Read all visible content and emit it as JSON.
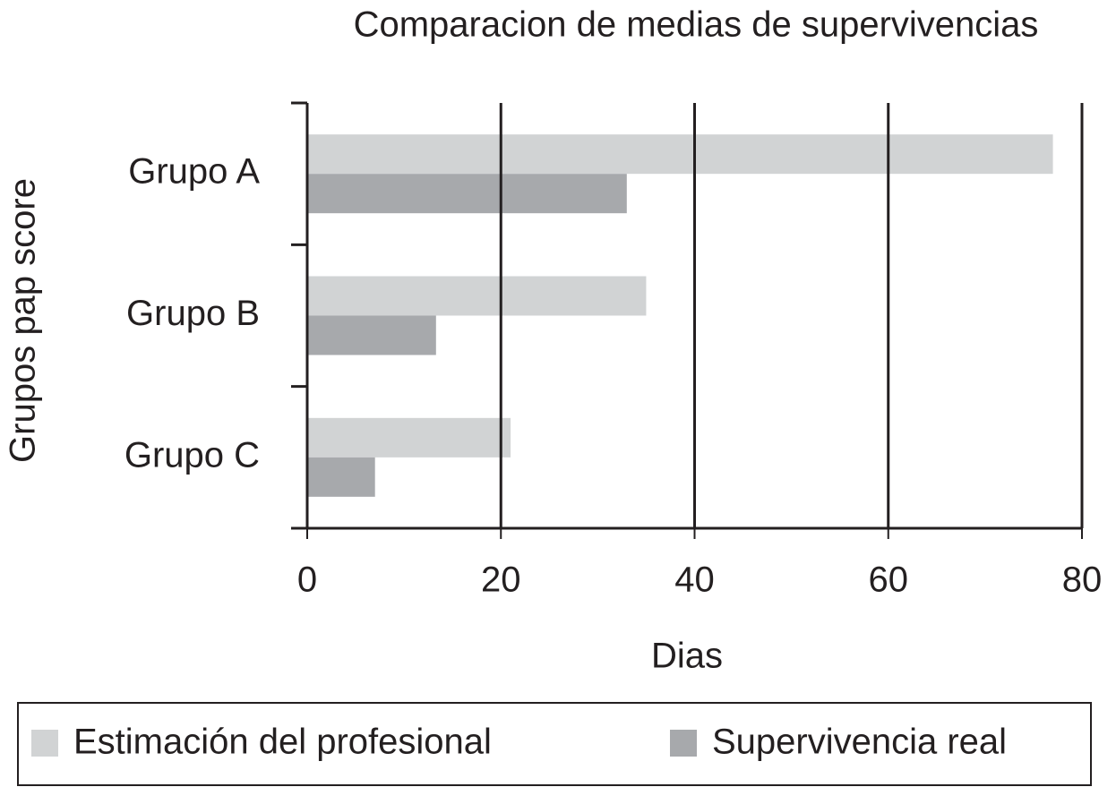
{
  "chart_data": {
    "type": "hbar",
    "title": "Comparacion de medias de supervivencias",
    "x_label": "Dias",
    "y_label": "Grupos pap score",
    "categories": [
      "Grupo A",
      "Grupo B",
      "Grupo C"
    ],
    "series": [
      {
        "name": "Estimación del profesional",
        "color": "#d1d3d4",
        "values": [
          77,
          35,
          21
        ]
      },
      {
        "name": "Supervivencia real",
        "color": "#a7a9ac",
        "values": [
          33,
          13.3,
          7
        ]
      }
    ],
    "xlim": [
      0,
      80
    ],
    "xticks": [
      0,
      20,
      40,
      60,
      80
    ],
    "grid": true
  }
}
